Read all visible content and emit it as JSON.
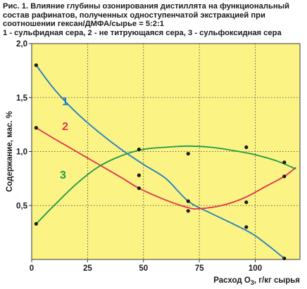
{
  "caption": {
    "line1": "Рис. 1. Влияние глубины озонирования дистиллята на функциональный",
    "line2": "состав рафинатов, полученных одноступенчатой экстракцией при",
    "line3": "соотношении гексан/ДМФА/сырье = 5:2:1",
    "line4": "1 - сульфидная сера, 2 - не титрующаяся сера, 3 - сульфоксидная сера"
  },
  "colors": {
    "plot_background": "#fbf383",
    "grid": "#3a3a3a",
    "curve_1": "#1f7fc4",
    "curve_2": "#e0344f",
    "curve_3": "#1e9a4c",
    "points": "#1a1a1a"
  },
  "chart_data": {
    "type": "scatter",
    "xlabel_main": "Расход O",
    "xlabel_sub": "3",
    "xlabel_tail": ", г/кг сырья",
    "ylabel": "Содержание, мас. %",
    "xlim": [
      0,
      120
    ],
    "ylim": [
      0,
      2.0
    ],
    "xticks": [
      0,
      25,
      50,
      75,
      100
    ],
    "xtick_labels": [
      "0",
      "25",
      "50",
      "75",
      "100"
    ],
    "yticks": [
      0.5,
      1.0,
      1.5,
      2.0
    ],
    "ytick_labels": [
      "0,5",
      "1,0",
      "1,5",
      "2,0"
    ],
    "grid": true,
    "series": [
      {
        "name": "1",
        "points": [
          [
            2,
            1.8
          ],
          [
            70,
            0.54
          ],
          [
            113,
            0.01
          ]
        ],
        "curve": [
          [
            2,
            1.8
          ],
          [
            10,
            1.58
          ],
          [
            20,
            1.36
          ],
          [
            30,
            1.18
          ],
          [
            40,
            1.02
          ],
          [
            50,
            0.88
          ],
          [
            60,
            0.75
          ],
          [
            70,
            0.54
          ],
          [
            80,
            0.43
          ],
          [
            90,
            0.33
          ],
          [
            100,
            0.22
          ],
          [
            113,
            0.01
          ]
        ]
      },
      {
        "name": "2",
        "points": [
          [
            2,
            1.22
          ],
          [
            48,
            0.66
          ],
          [
            70,
            0.45
          ],
          [
            96,
            0.3
          ],
          [
            113,
            0.77
          ]
        ],
        "curve": [
          [
            2,
            1.22
          ],
          [
            10,
            1.12
          ],
          [
            20,
            1.0
          ],
          [
            30,
            0.88
          ],
          [
            40,
            0.76
          ],
          [
            48,
            0.66
          ],
          [
            60,
            0.55
          ],
          [
            70,
            0.48
          ],
          [
            75,
            0.47
          ],
          [
            85,
            0.5
          ],
          [
            95,
            0.57
          ],
          [
            105,
            0.68
          ],
          [
            113,
            0.77
          ],
          [
            118,
            0.85
          ]
        ]
      },
      {
        "name": "3",
        "points": [
          [
            2,
            0.33
          ],
          [
            48,
            1.02
          ],
          [
            48,
            0.78
          ],
          [
            70,
            0.98
          ],
          [
            96,
            1.04
          ],
          [
            96,
            0.53
          ],
          [
            113,
            0.9
          ]
        ],
        "curve": [
          [
            2,
            0.33
          ],
          [
            10,
            0.5
          ],
          [
            20,
            0.7
          ],
          [
            30,
            0.86
          ],
          [
            40,
            0.96
          ],
          [
            50,
            1.02
          ],
          [
            60,
            1.04
          ],
          [
            70,
            1.05
          ],
          [
            80,
            1.04
          ],
          [
            90,
            1.01
          ],
          [
            100,
            0.97
          ],
          [
            110,
            0.91
          ],
          [
            118,
            0.84
          ]
        ]
      }
    ],
    "curve_labels": [
      {
        "text": "1",
        "x": 15,
        "y": 1.43,
        "series": 0
      },
      {
        "text": "2",
        "x": 15,
        "y": 1.2,
        "series": 1
      },
      {
        "text": "3",
        "x": 14,
        "y": 0.75,
        "series": 2
      }
    ]
  }
}
